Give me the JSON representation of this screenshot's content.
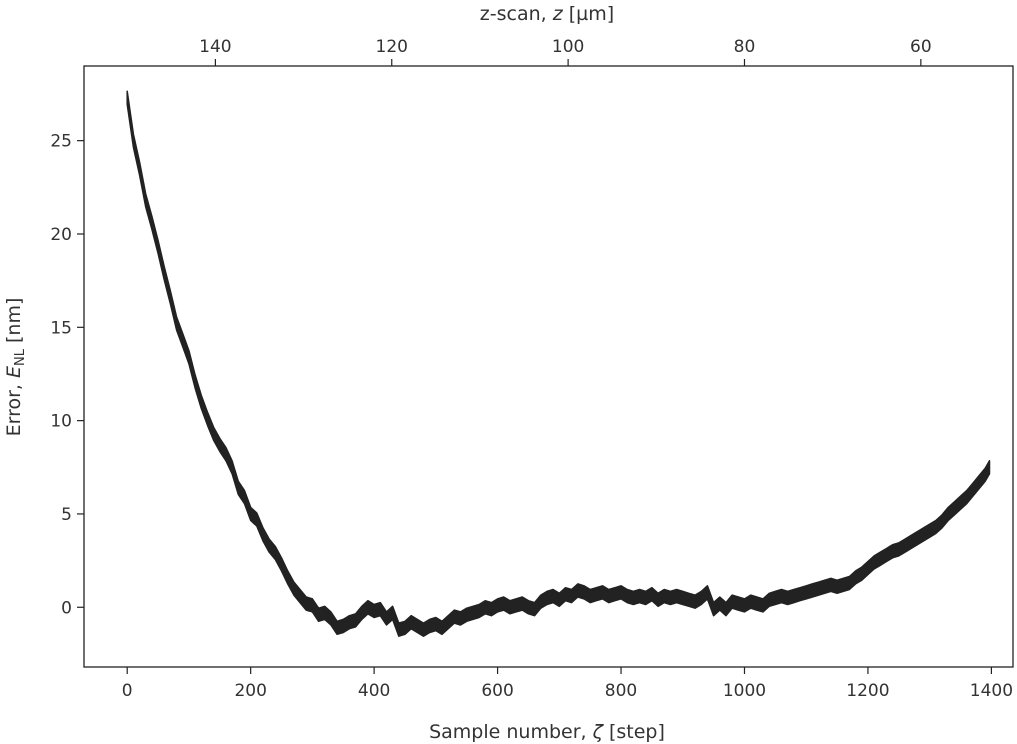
{
  "chart_data": {
    "type": "line",
    "xlabel": {
      "text": "Sample number, ",
      "symbol": "ζ",
      "unit": " [step]"
    },
    "ylabel": {
      "text": "Error, ",
      "symbol": "E",
      "subscript": "NL",
      "unit": " [nm]"
    },
    "top_xlabel": {
      "text": "z-scan, ",
      "symbol": "z",
      "unit": " [µm]"
    },
    "xlim": [
      -70,
      1435
    ],
    "ylim": [
      -3.2,
      29.0
    ],
    "x_ticks": [
      0,
      200,
      400,
      600,
      800,
      1000,
      1200,
      1400
    ],
    "y_ticks": [
      0,
      5,
      10,
      15,
      20,
      25
    ],
    "top_ticks": [
      140,
      120,
      100,
      80,
      60
    ],
    "z_scale": {
      "z_at_x0": 150,
      "z_per_step": -0.07
    },
    "grid": false,
    "legend": "none",
    "line_color": "#222222",
    "band_width": 0.7,
    "series": [
      {
        "x": [
          0,
          10,
          20,
          30,
          40,
          50,
          60,
          70,
          80,
          90,
          100,
          110,
          120,
          130,
          140,
          150,
          160,
          170,
          180,
          190,
          200,
          210,
          220,
          230,
          240,
          250,
          260,
          270,
          280,
          290,
          300,
          310,
          320,
          330,
          340,
          350,
          360,
          370,
          380,
          390,
          400,
          410,
          420,
          430,
          440,
          450,
          460,
          470,
          480,
          490,
          500,
          510,
          520,
          530,
          540,
          550,
          560,
          570,
          580,
          590,
          600,
          610,
          620,
          630,
          640,
          650,
          660,
          670,
          680,
          690,
          700,
          710,
          720,
          730,
          740,
          750,
          760,
          770,
          780,
          790,
          800,
          810,
          820,
          830,
          840,
          850,
          860,
          870,
          880,
          890,
          900,
          910,
          920,
          930,
          940,
          950,
          960,
          970,
          980,
          990,
          1000,
          1010,
          1020,
          1030,
          1040,
          1050,
          1060,
          1070,
          1080,
          1090,
          1100,
          1110,
          1120,
          1130,
          1140,
          1150,
          1160,
          1170,
          1180,
          1190,
          1200,
          1210,
          1220,
          1230,
          1240,
          1250,
          1260,
          1270,
          1280,
          1290,
          1300,
          1310,
          1320,
          1330,
          1340,
          1350,
          1360,
          1370,
          1380,
          1390,
          1397
        ],
        "values": [
          27.3,
          25.0,
          23.5,
          21.8,
          20.6,
          19.3,
          17.9,
          16.6,
          15.2,
          14.3,
          13.4,
          12.1,
          11.0,
          10.1,
          9.3,
          8.7,
          8.2,
          7.5,
          6.4,
          5.9,
          5.0,
          4.7,
          3.9,
          3.3,
          2.9,
          2.3,
          1.6,
          1.0,
          0.6,
          0.2,
          0.1,
          -0.4,
          -0.3,
          -0.6,
          -1.1,
          -1.0,
          -0.8,
          -0.7,
          -0.3,
          0.0,
          -0.2,
          -0.1,
          -0.6,
          -0.3,
          -1.2,
          -1.1,
          -0.8,
          -1.0,
          -1.2,
          -1.0,
          -0.9,
          -1.1,
          -0.8,
          -0.5,
          -0.6,
          -0.4,
          -0.3,
          -0.2,
          0.0,
          -0.1,
          0.1,
          0.2,
          0.0,
          0.1,
          0.2,
          0.0,
          -0.1,
          0.3,
          0.5,
          0.6,
          0.4,
          0.7,
          0.6,
          0.9,
          0.8,
          0.6,
          0.7,
          0.8,
          0.6,
          0.7,
          0.8,
          0.6,
          0.5,
          0.6,
          0.5,
          0.7,
          0.4,
          0.6,
          0.5,
          0.6,
          0.5,
          0.4,
          0.3,
          0.5,
          0.8,
          -0.1,
          0.2,
          -0.1,
          0.3,
          0.2,
          0.1,
          0.3,
          0.2,
          0.1,
          0.4,
          0.5,
          0.6,
          0.5,
          0.6,
          0.7,
          0.8,
          0.9,
          1.0,
          1.1,
          1.2,
          1.1,
          1.2,
          1.3,
          1.6,
          1.8,
          2.1,
          2.4,
          2.6,
          2.8,
          3.0,
          3.1,
          3.3,
          3.5,
          3.7,
          3.9,
          4.1,
          4.3,
          4.6,
          5.0,
          5.3,
          5.6,
          5.9,
          6.3,
          6.7,
          7.1,
          7.5
        ]
      }
    ]
  }
}
